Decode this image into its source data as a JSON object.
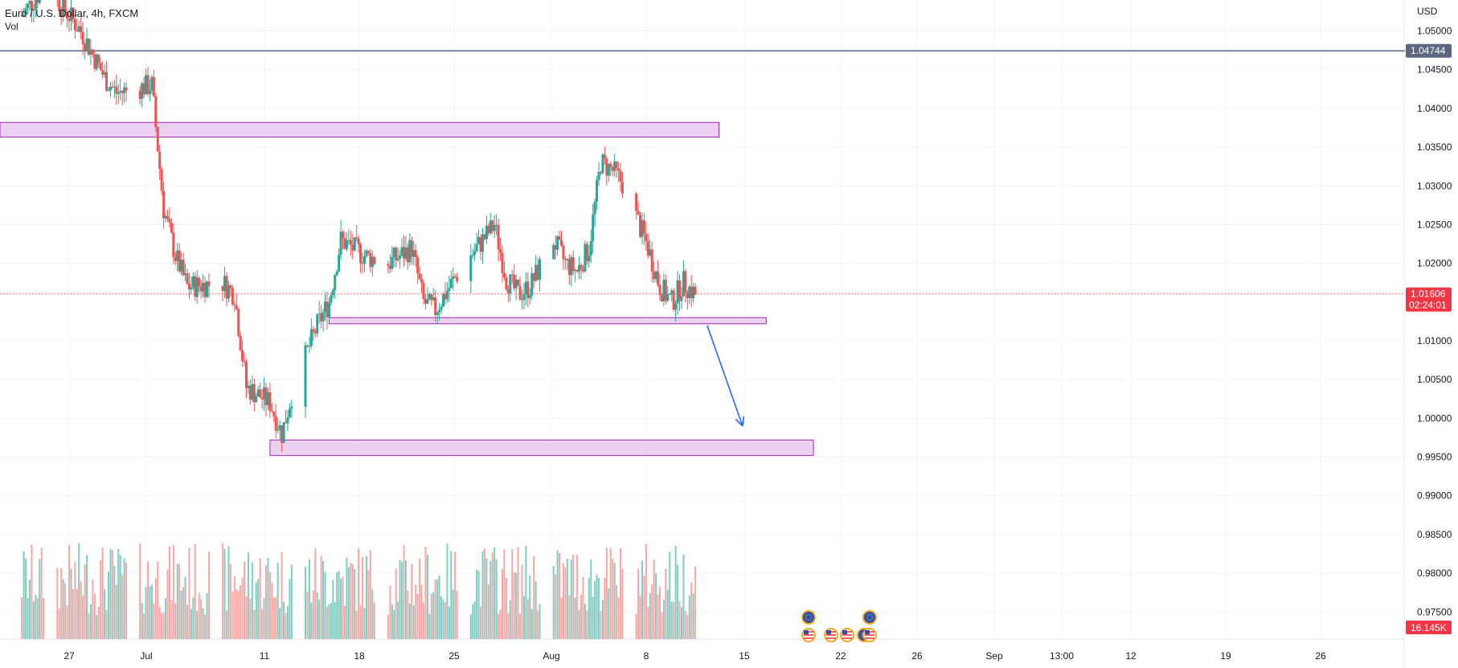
{
  "legend": {
    "symbol": "Euro / U.S. Dollar, 4h, FXCM",
    "indicator": "Vol"
  },
  "price_axis": {
    "currency": "USD",
    "ticks": [
      "1.05000",
      "1.04500",
      "1.04000",
      "1.03500",
      "1.03000",
      "1.02500",
      "1.02000",
      "1.01000",
      "1.00500",
      "1.00000",
      "0.99500",
      "0.99000",
      "0.98500",
      "0.98000",
      "0.97500"
    ]
  },
  "time_axis": {
    "ticks": [
      "27",
      "Jul",
      "11",
      "18",
      "25",
      "Aug",
      "8",
      "15",
      "22",
      "26",
      "Sep",
      "13:00",
      "12",
      "19",
      "26"
    ]
  },
  "tags": {
    "hline_price": "1.04744",
    "last_price": "1.01606",
    "countdown": "02:24:01",
    "volume": "16.145K"
  },
  "colors": {
    "up": "#26a69a",
    "down": "#ef5350",
    "up_vol": "#7fcdc4",
    "down_vol": "#f7a7a5",
    "zone_fill": "#e9c8ee",
    "zone_stroke": "#9c27b0",
    "hline": "#5d6680",
    "arrow": "#2962ff",
    "last": "#f23645"
  },
  "chart_data": {
    "type": "candlestick",
    "symbol": "EURUSD",
    "timeframe": "4h",
    "y_range": [
      0.9715,
      1.054
    ],
    "horizontal_line": 1.04744,
    "last_price": 1.01606,
    "zones": [
      {
        "from": "2022-06-21",
        "to": "2022-08-21",
        "low": 1.0363,
        "high": 1.0382
      },
      {
        "from": "2022-07-19",
        "to": "2022-08-25",
        "low": 1.0122,
        "high": 1.013
      },
      {
        "from": "2022-07-14",
        "to": "2022-08-29",
        "low": 0.9952,
        "high": 0.9972
      }
    ],
    "arrow": {
      "from": [
        "2022-08-20",
        1.012
      ],
      "to": [
        "2022-08-23",
        0.999
      ]
    },
    "path": [
      [
        "2022-06-23",
        1.052
      ],
      [
        "2022-06-25",
        1.056
      ],
      [
        "2022-06-28",
        1.05
      ],
      [
        "2022-06-30",
        1.044
      ],
      [
        "2022-07-01",
        1.042
      ],
      [
        "2022-07-04",
        1.043
      ],
      [
        "2022-07-05",
        1.027
      ],
      [
        "2022-07-06",
        1.021
      ],
      [
        "2022-07-07",
        1.017
      ],
      [
        "2022-07-10",
        1.0175
      ],
      [
        "2022-07-11",
        1.016
      ],
      [
        "2022-07-12",
        1.004
      ],
      [
        "2022-07-13",
        1.003
      ],
      [
        "2022-07-14",
        1.002
      ],
      [
        "2022-07-15",
        0.998
      ],
      [
        "2022-07-16",
        1.004
      ],
      [
        "2022-07-18",
        1.012
      ],
      [
        "2022-07-19",
        1.015
      ],
      [
        "2022-07-20",
        1.023
      ],
      [
        "2022-07-22",
        1.021
      ],
      [
        "2022-07-24",
        1.02
      ],
      [
        "2022-07-26",
        1.022
      ],
      [
        "2022-07-27",
        1.015
      ],
      [
        "2022-07-28",
        1.014
      ],
      [
        "2022-07-30",
        1.019
      ],
      [
        "2022-08-01",
        1.023
      ],
      [
        "2022-08-02",
        1.025
      ],
      [
        "2022-08-03",
        1.018
      ],
      [
        "2022-08-04",
        1.016
      ],
      [
        "2022-08-05",
        1.017
      ],
      [
        "2022-08-07",
        1.023
      ],
      [
        "2022-08-08",
        1.02
      ],
      [
        "2022-08-09",
        1.019
      ],
      [
        "2022-08-10",
        1.022
      ],
      [
        "2022-08-11",
        1.033
      ],
      [
        "2022-08-12",
        1.032
      ],
      [
        "2022-08-13",
        1.03
      ],
      [
        "2022-08-14",
        1.026
      ],
      [
        "2022-08-15",
        1.022
      ],
      [
        "2022-08-16",
        1.017
      ],
      [
        "2022-08-17",
        1.015
      ],
      [
        "2022-08-18",
        1.0175
      ],
      [
        "2022-08-19",
        1.016
      ]
    ]
  }
}
